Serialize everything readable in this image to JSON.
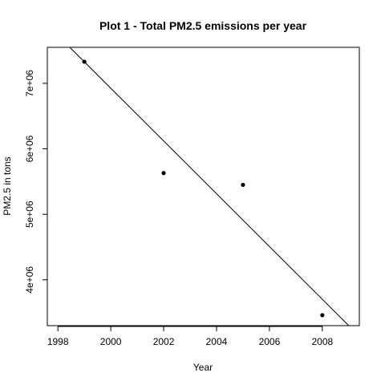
{
  "chart_data": {
    "type": "scatter",
    "title": "Plot 1 - Total PM2.5 emissions per year",
    "xlabel": "Year",
    "ylabel": "PM2.5 in tons",
    "xlim": [
      1997.6,
      2009.4
    ],
    "ylim": [
      3300000,
      7550000
    ],
    "x_ticks": [
      1998,
      2000,
      2002,
      2004,
      2006,
      2008
    ],
    "x_tick_labels": [
      "1998",
      "2000",
      "2002",
      "2004",
      "2006",
      "2008"
    ],
    "y_ticks": [
      4000000,
      5000000,
      6000000,
      7000000
    ],
    "y_tick_labels": [
      "4e+06",
      "5e+06",
      "6e+06",
      "7e+06"
    ],
    "grid": false,
    "series": [
      {
        "x": [
          1999,
          2002,
          2005,
          2008
        ],
        "y": [
          7330000,
          5630000,
          5450000,
          3460000
        ],
        "color": "#000000"
      }
    ],
    "regression_line": {
      "x": [
        1998.45,
        2009.0
      ],
      "y": [
        7550000,
        3300000
      ],
      "color": "#000000"
    }
  }
}
